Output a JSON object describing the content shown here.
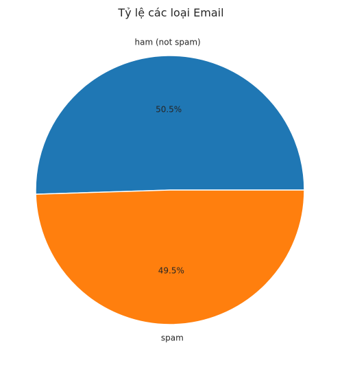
{
  "chart_data": {
    "type": "pie",
    "title": "Tỷ lệ các loại Email",
    "slices": [
      {
        "label": "ham (not spam)",
        "value": 50.5,
        "pct_label": "50.5%",
        "color": "#1f77b4"
      },
      {
        "label": "spam",
        "value": 49.5,
        "pct_label": "49.5%",
        "color": "#ff7f0e"
      }
    ],
    "legend": "none"
  }
}
